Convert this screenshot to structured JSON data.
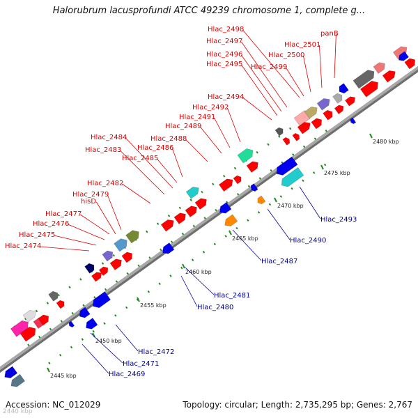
{
  "title": "Halorubrum lacusprofundi ATCC 49239 chromosome 1, complete g...",
  "footer": {
    "accession": "Accession: NC_012029",
    "topology": "Topology: circular; Length: 2,735,295 bp; Genes: 2,767",
    "watermark": "2440 kbp"
  },
  "colors": {
    "forward_label": "#dd0000",
    "reverse_label": "#000099",
    "backbone": "#9a9a9a",
    "tick": "#228822"
  },
  "scale": {
    "major_ticks": [
      "2445 kbp",
      "2450 kbp",
      "2455 kbp",
      "2460 kbp",
      "2465 kbp",
      "2470 kbp",
      "2475 kbp",
      "2480 kbp"
    ]
  },
  "forward_labels": [
    "Hlac_2474",
    "Hlac_2475",
    "Hlac_2476",
    "Hlac_2477",
    "Hlac_2479",
    "hisD",
    "Hlac_2482",
    "Hlac_2483",
    "Hlac_2484",
    "Hlac_2485",
    "Hlac_2486",
    "Hlac_2488",
    "Hlac_2489",
    "Hlac_2491",
    "Hlac_2492",
    "Hlac_2494",
    "Hlac_2495",
    "Hlac_2496",
    "Hlac_2497",
    "Hlac_2498",
    "Hlac_2499",
    "Hlac_2500",
    "Hlac_2501",
    "panB"
  ],
  "reverse_labels": [
    "Hlac_2469",
    "Hlac_2471",
    "Hlac_2472",
    "Hlac_2480",
    "Hlac_2481",
    "Hlac_2487",
    "Hlac_2490",
    "Hlac_2493"
  ]
}
